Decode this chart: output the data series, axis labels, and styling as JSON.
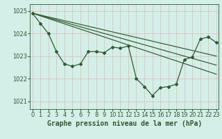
{
  "bg_color": "#d4eee8",
  "grid_color_v": "#ddbbbb",
  "grid_color_h": "#ddbbbb",
  "line_color": "#2d5a2d",
  "marker_color": "#2d5a2d",
  "ylabel_ticks": [
    1021,
    1022,
    1023,
    1024,
    1025
  ],
  "xlim": [
    -0.3,
    23.3
  ],
  "ylim": [
    1020.65,
    1025.3
  ],
  "xlabel": "Graphe pression niveau de la mer (hPa)",
  "xlabel_fontsize": 7.0,
  "tick_fontsize": 6.0,
  "series_main": {
    "x": [
      0,
      1,
      2,
      3,
      4,
      5,
      6,
      7,
      8,
      9,
      10,
      11,
      12,
      13,
      14,
      15,
      16,
      17,
      18,
      19,
      20,
      21,
      22,
      23
    ],
    "y": [
      1024.9,
      1024.45,
      1024.0,
      1023.2,
      1022.65,
      1022.55,
      1022.65,
      1023.2,
      1023.2,
      1023.15,
      1023.4,
      1023.35,
      1023.45,
      1022.0,
      1021.65,
      1021.25,
      1021.6,
      1021.65,
      1021.75,
      1022.85,
      1022.95,
      1023.75,
      1023.85,
      1023.6
    ]
  },
  "series_trend1": {
    "x": [
      0,
      23
    ],
    "y": [
      1024.9,
      1023.0
    ]
  },
  "series_trend2": {
    "x": [
      0,
      23
    ],
    "y": [
      1024.9,
      1022.6
    ]
  },
  "series_trend3": {
    "x": [
      0,
      23
    ],
    "y": [
      1024.9,
      1022.2
    ]
  }
}
